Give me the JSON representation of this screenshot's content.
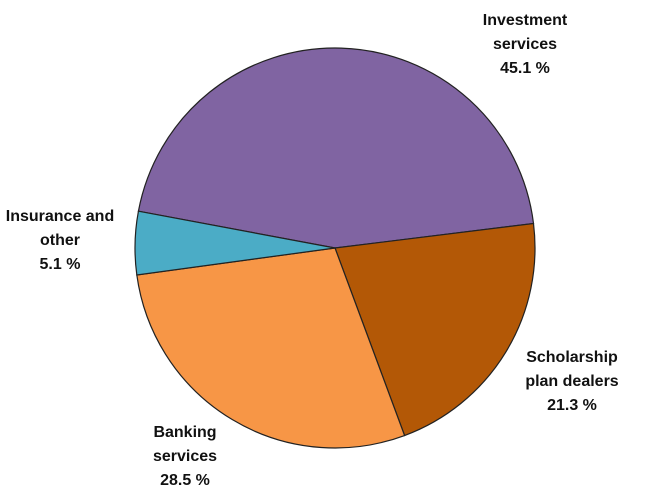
{
  "chart_data": {
    "type": "pie",
    "categories": [
      "Investment services",
      "Scholarship plan dealers",
      "Banking services",
      "Insurance and other"
    ],
    "values": [
      45.1,
      21.3,
      28.5,
      5.1
    ],
    "value_labels": [
      "45.1 %",
      "21.3 %",
      "28.5 %",
      "5.1 %"
    ],
    "colors": [
      "#8064a2",
      "#b35806",
      "#f79646",
      "#4bacc6"
    ]
  }
}
